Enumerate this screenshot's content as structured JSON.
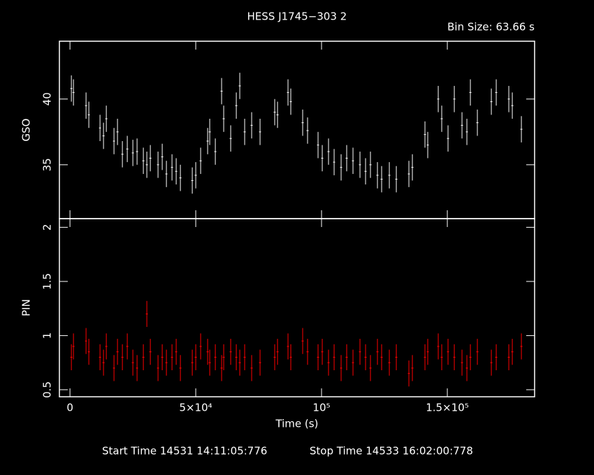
{
  "chart_data": [
    {
      "type": "errorbar",
      "title": "HESS J1745−303 2",
      "subtitle": "Bin Size: 63.66 s",
      "ylabel": "GSO",
      "color": "#ffffff",
      "x": [
        556,
        1389,
        6389,
        7500,
        11944,
        13333,
        14444,
        17500,
        18889,
        20833,
        22778,
        25000,
        26667,
        29167,
        30556,
        31944,
        35000,
        36667,
        38333,
        40556,
        42222,
        43889,
        48611,
        50000,
        51944,
        54722,
        55556,
        57778,
        60278,
        61111,
        63889,
        66111,
        67500,
        69444,
        72222,
        75556,
        81389,
        82500,
        86667,
        87778,
        92500,
        94444,
        98611,
        100278,
        102778,
        105000,
        107778,
        110000,
        112500,
        115278,
        117500,
        119444,
        122222,
        123889,
        126944,
        129722,
        134722,
        136111,
        141111,
        142222,
        146389,
        147778,
        150278,
        152778,
        155833,
        157778,
        159167,
        161944,
        167500,
        169444,
        174444,
        175833,
        179444
      ],
      "values": [
        40.8,
        40.5,
        39.5,
        38.8,
        37.8,
        37.2,
        38.5,
        36.8,
        37.5,
        35.8,
        36.2,
        35.9,
        36.0,
        35.3,
        35.0,
        35.5,
        35.0,
        35.6,
        34.3,
        34.8,
        34.5,
        34.0,
        33.8,
        34.2,
        35.3,
        36.8,
        37.5,
        36.0,
        40.6,
        38.5,
        37.0,
        39.5,
        41.0,
        37.5,
        38.0,
        37.5,
        39.0,
        38.8,
        40.5,
        39.8,
        38.2,
        37.6,
        36.5,
        35.5,
        36.0,
        35.2,
        34.8,
        35.5,
        35.3,
        35.0,
        34.5,
        35.0,
        34.2,
        33.9,
        34.2,
        33.9,
        34.3,
        34.8,
        37.3,
        36.5,
        40.0,
        38.5,
        37.0,
        40.0,
        38.0,
        37.5,
        40.5,
        38.2,
        39.8,
        40.5,
        40.0,
        39.5,
        37.7
      ],
      "yerr": 1.0,
      "xlim": [
        -4200,
        184700
      ],
      "xticks": [
        0,
        50000,
        100000,
        150000
      ],
      "ylim": [
        30.9,
        44.4
      ],
      "yticks": [
        35,
        40
      ]
    },
    {
      "type": "errorbar",
      "ylabel": "PIN",
      "xlabel": "Time (s)",
      "color": "#ff0000",
      "annotations": [
        "Start Time 14531 14:11:05:776",
        "Stop Time 14533 16:02:00:778"
      ],
      "x": [
        556,
        1389,
        6389,
        7500,
        11944,
        13333,
        14444,
        17500,
        18889,
        20833,
        22778,
        25000,
        26667,
        29167,
        30556,
        31944,
        35000,
        36667,
        38333,
        40556,
        42222,
        43889,
        48611,
        50000,
        51944,
        54722,
        55556,
        57778,
        60278,
        61111,
        63889,
        66111,
        67500,
        69444,
        72222,
        75556,
        81389,
        82500,
        86667,
        87778,
        92500,
        94444,
        98611,
        100278,
        102778,
        105000,
        107778,
        110000,
        112500,
        115278,
        117500,
        119444,
        122222,
        123889,
        126944,
        129722,
        134722,
        136111,
        141111,
        142222,
        146389,
        147778,
        150278,
        152778,
        155833,
        157778,
        159167,
        161944,
        167500,
        169444,
        174444,
        175833,
        179444
      ],
      "values": [
        0.8,
        0.9,
        0.95,
        0.85,
        0.8,
        0.75,
        0.9,
        0.7,
        0.85,
        0.8,
        0.9,
        0.75,
        0.7,
        0.8,
        1.2,
        0.85,
        0.7,
        0.8,
        0.75,
        0.8,
        0.85,
        0.7,
        0.75,
        0.8,
        0.9,
        0.85,
        0.75,
        0.8,
        0.7,
        0.8,
        0.85,
        0.8,
        0.75,
        0.8,
        0.7,
        0.75,
        0.8,
        0.85,
        0.9,
        0.8,
        0.95,
        0.85,
        0.8,
        0.85,
        0.75,
        0.8,
        0.7,
        0.8,
        0.75,
        0.85,
        0.8,
        0.7,
        0.85,
        0.8,
        0.75,
        0.8,
        0.65,
        0.7,
        0.8,
        0.85,
        0.9,
        0.8,
        0.85,
        0.8,
        0.75,
        0.7,
        0.8,
        0.85,
        0.75,
        0.8,
        0.8,
        0.85,
        0.9
      ],
      "yerr": 0.12,
      "xlim": [
        -4200,
        184700
      ],
      "xticks": [
        0,
        {
          "value": 50000,
          "label": "5×10⁴"
        },
        {
          "value": 100000,
          "label": "10⁵"
        },
        {
          "value": 150000,
          "label": "1.5×10⁵"
        }
      ],
      "ylim": [
        0.435,
        2.08
      ],
      "yticks": [
        0.5,
        1,
        1.5,
        2
      ]
    }
  ]
}
